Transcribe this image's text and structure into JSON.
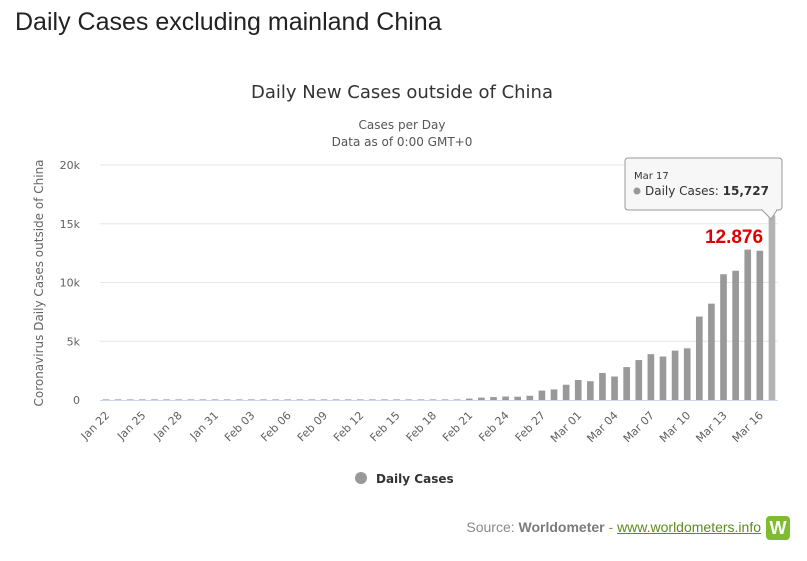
{
  "page": {
    "heading": "Daily Cases excluding mainland China"
  },
  "chart_data": {
    "type": "bar",
    "title": "Daily New Cases outside of China",
    "subtitle_lines": [
      "Cases per Day",
      "Data as of 0:00 GMT+0"
    ],
    "ylabel": "Coronavirus Daily Cases outside of China",
    "xlabel": "",
    "ylim": [
      0,
      20000
    ],
    "y_ticks": [
      0,
      5000,
      10000,
      15000,
      20000
    ],
    "y_tick_labels": [
      "0",
      "5k",
      "10k",
      "15k",
      "20k"
    ],
    "categories": [
      "Jan 22",
      "Jan 23",
      "Jan 24",
      "Jan 25",
      "Jan 26",
      "Jan 27",
      "Jan 28",
      "Jan 29",
      "Jan 30",
      "Jan 31",
      "Feb 01",
      "Feb 02",
      "Feb 03",
      "Feb 04",
      "Feb 05",
      "Feb 06",
      "Feb 07",
      "Feb 08",
      "Feb 09",
      "Feb 10",
      "Feb 11",
      "Feb 12",
      "Feb 13",
      "Feb 14",
      "Feb 15",
      "Feb 16",
      "Feb 17",
      "Feb 18",
      "Feb 19",
      "Feb 20",
      "Feb 21",
      "Feb 22",
      "Feb 23",
      "Feb 24",
      "Feb 25",
      "Feb 26",
      "Feb 27",
      "Feb 28",
      "Feb 29",
      "Mar 01",
      "Mar 02",
      "Mar 03",
      "Mar 04",
      "Mar 05",
      "Mar 06",
      "Mar 07",
      "Mar 08",
      "Mar 09",
      "Mar 10",
      "Mar 11",
      "Mar 12",
      "Mar 13",
      "Mar 14",
      "Mar 15",
      "Mar 16",
      "Mar 17"
    ],
    "x_tick_labels": [
      "Jan 22",
      "Jan 25",
      "Jan 28",
      "Jan 31",
      "Feb 03",
      "Feb 06",
      "Feb 09",
      "Feb 12",
      "Feb 15",
      "Feb 18",
      "Feb 21",
      "Feb 24",
      "Feb 27",
      "Mar 01",
      "Mar 04",
      "Mar 07",
      "Mar 10",
      "Mar 13",
      "Mar 16"
    ],
    "series": [
      {
        "name": "Daily Cases",
        "color": "#999999",
        "values": [
          5,
          10,
          12,
          8,
          15,
          10,
          20,
          15,
          25,
          15,
          20,
          15,
          20,
          15,
          25,
          20,
          15,
          30,
          15,
          25,
          10,
          15,
          20,
          15,
          10,
          20,
          15,
          25,
          20,
          40,
          120,
          200,
          250,
          300,
          280,
          360,
          800,
          900,
          1300,
          1700,
          1600,
          2300,
          2000,
          2800,
          3400,
          3900,
          3700,
          4200,
          4400,
          7100,
          8200,
          10700,
          11000,
          12800,
          12700,
          15727
        ]
      }
    ],
    "legend": [
      "Daily Cases"
    ],
    "legend_position": "bottom-center",
    "annotation": {
      "text": "12.876"
    },
    "tooltip": {
      "date": "Mar 17",
      "series": "Daily Cases",
      "value": "15,727"
    }
  },
  "source": {
    "prefix": "Source:",
    "name": "Worldometer",
    "separator": "-",
    "link_text": "www.worldometers.info",
    "logo_letter": "W"
  },
  "colors": {
    "bar": "#999999",
    "bar_highlight": "#b3b3b3",
    "gridline": "#e6e6e6",
    "annotation": "#e00000",
    "brand": "#7ebd2e",
    "link": "#5a8c1f"
  }
}
